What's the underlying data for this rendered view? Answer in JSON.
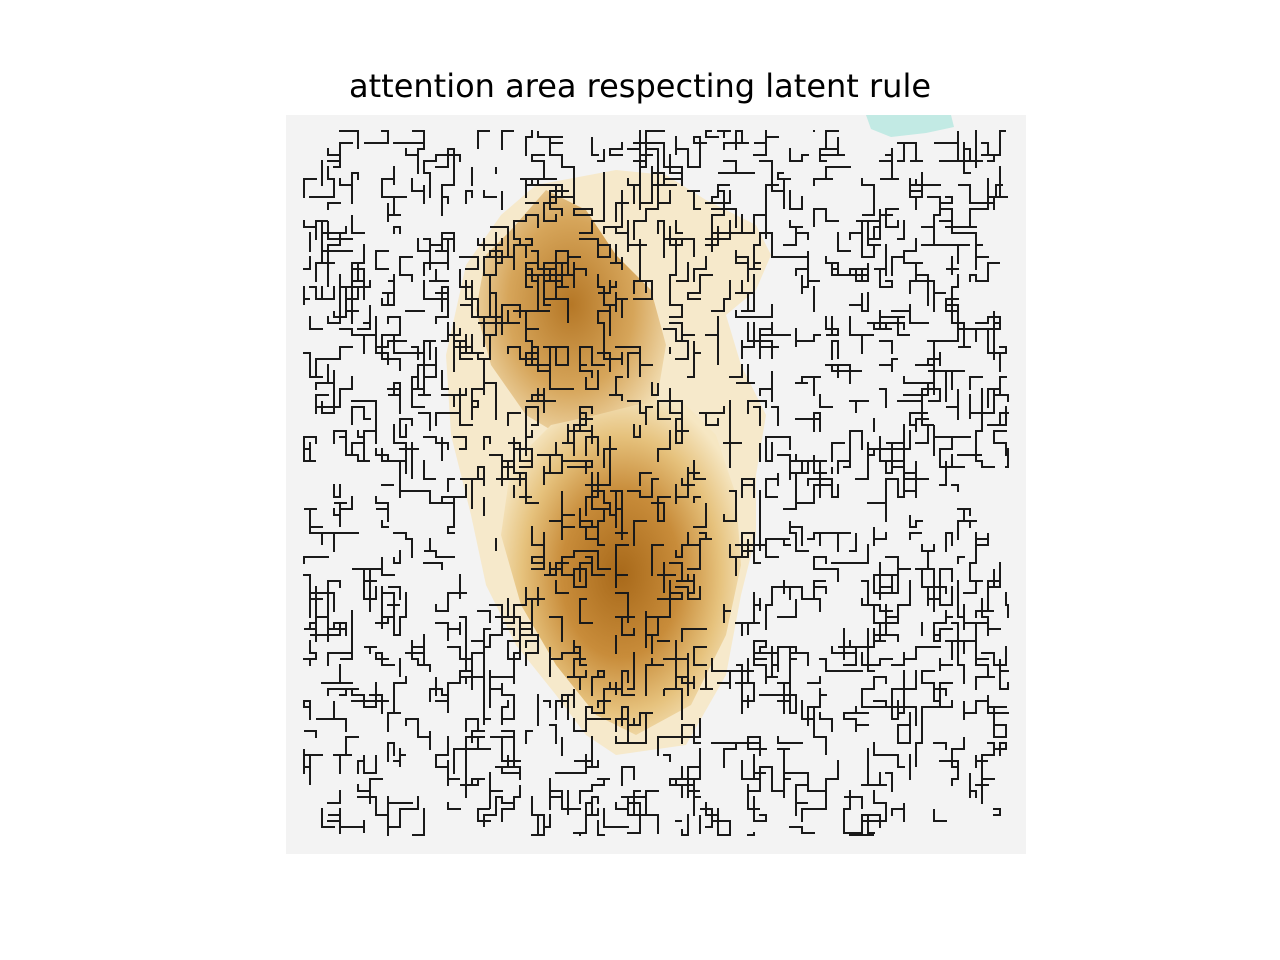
{
  "figure": {
    "title": "attention area respecting latent rule"
  },
  "image": {
    "description_name": "attention-heatmap",
    "colors": {
      "background": "#f3f3f3",
      "attention_low": "#f7e9c4",
      "attention_mid": "#dfb466",
      "attention_high": "#a8691a",
      "negative": "#8fd8cf",
      "edges": "#1a1a1a"
    }
  }
}
